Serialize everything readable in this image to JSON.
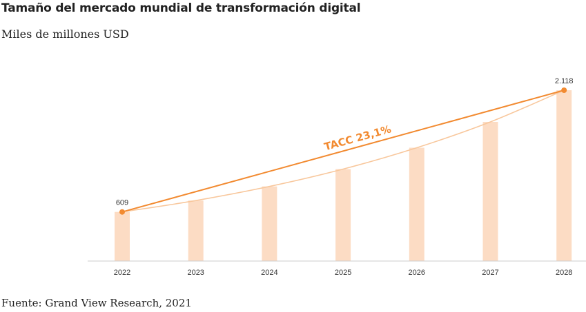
{
  "title": "Tamaño del mercado mundial de transformación digital",
  "subtitle": "Miles de millones USD",
  "source": "Fuente: Grand View Research, 2021",
  "colors": {
    "bar": "#fcdcc4",
    "accent": "#f28a30",
    "curve": "#f8c79c",
    "axis": "#cccccc",
    "text": "#222222"
  },
  "chart_data": {
    "type": "bar",
    "title": "Tamaño del mercado mundial de transformación digital",
    "subtitle": "Miles de millones USD",
    "xlabel": "",
    "ylabel": "",
    "categories": [
      "2022",
      "2023",
      "2024",
      "2025",
      "2026",
      "2027",
      "2028"
    ],
    "values": [
      609,
      750,
      925,
      1140,
      1405,
      1725,
      2118
    ],
    "data_labels": [
      {
        "category": "2022",
        "text": "609"
      },
      {
        "category": "2028",
        "text": "2.118"
      }
    ],
    "ylim": [
      0,
      2118
    ],
    "grid": false,
    "annotation": {
      "text": "TACC 23,1%",
      "from": "2022",
      "to": "2028"
    }
  }
}
